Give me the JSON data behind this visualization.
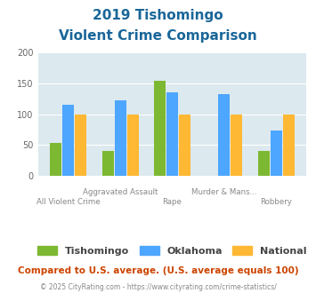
{
  "title_line1": "2019 Tishomingo",
  "title_line2": "Violent Crime Comparison",
  "categories": [
    "All Violent Crime",
    "Aggravated Assault",
    "Rape",
    "Murder & Mans...",
    "Robbery"
  ],
  "tishomingo": [
    54,
    41,
    155,
    0,
    41
  ],
  "oklahoma": [
    115,
    123,
    135,
    133,
    74
  ],
  "national": [
    100,
    100,
    100,
    100,
    100
  ],
  "colors": {
    "tishomingo": "#7db832",
    "oklahoma": "#4da6ff",
    "national": "#ffb833"
  },
  "ylim": [
    0,
    200
  ],
  "yticks": [
    0,
    50,
    100,
    150,
    200
  ],
  "plot_bg": "#dce9ef",
  "title_color": "#1a6699",
  "xlabel_color": "#888888",
  "legend_label_color": "#444444",
  "footer_text": "Compared to U.S. average. (U.S. average equals 100)",
  "footer2_text": "© 2025 CityRating.com - https://www.cityrating.com/crime-statistics/",
  "footer_color": "#cc4400",
  "footer2_color": "#888888"
}
